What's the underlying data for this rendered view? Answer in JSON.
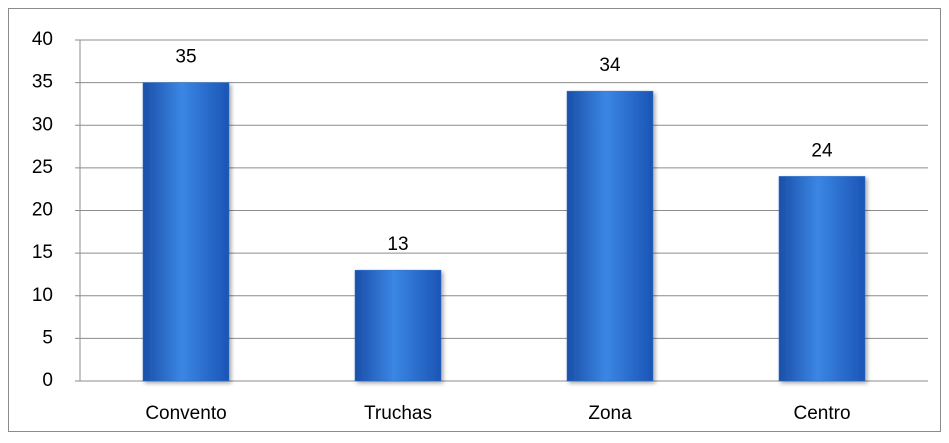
{
  "chart_data": {
    "type": "bar",
    "categories": [
      "Convento",
      "Truchas",
      "Zona",
      "Centro"
    ],
    "values": [
      35,
      13,
      34,
      24
    ],
    "color": "#2a6fd0",
    "ylim": [
      0,
      40
    ],
    "yticks": [
      0,
      5,
      10,
      15,
      20,
      25,
      30,
      35,
      40
    ],
    "grid": true,
    "data_labels": true
  }
}
